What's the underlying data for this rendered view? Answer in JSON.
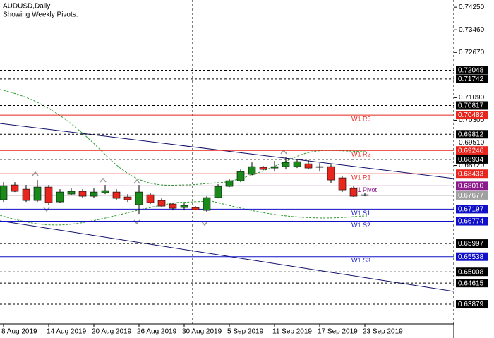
{
  "chart_data": {
    "type": "candlestick",
    "title": "AUDUSD,Daily",
    "subtitle": "Showing Weekly Pivots.",
    "categories": [
      "8 Aug 2019",
      null,
      null,
      null,
      "14 Aug 2019",
      null,
      null,
      null,
      "20 Aug 2019",
      null,
      null,
      null,
      "26 Aug 2019",
      null,
      null,
      null,
      "30 Aug 2019",
      null,
      null,
      null,
      "5 Sep 2019",
      null,
      null,
      null,
      "11 Sep 2019",
      null,
      null,
      null,
      "17 Sep 2019",
      null,
      null,
      null,
      "23 Sep 2019"
    ],
    "open": [
      0.67525,
      0.68042,
      0.67894,
      0.675,
      0.67968,
      0.67451,
      0.67722,
      0.6782,
      0.67648,
      0.67771,
      0.67796,
      0.67624,
      0.67352,
      0.67697,
      0.675,
      0.67377,
      0.67254,
      0.67254,
      0.67155,
      0.67599,
      0.67993,
      0.6819,
      0.68412,
      0.68658,
      0.68633,
      0.68682,
      0.68682,
      0.68781,
      0.68682,
      0.68682,
      0.68289,
      0.67919,
      0.67697
    ],
    "high": [
      0.68141,
      0.68141,
      0.68042,
      0.68215,
      0.68042,
      0.67894,
      0.67919,
      0.67894,
      0.67919,
      0.68042,
      0.67894,
      0.67722,
      0.68042,
      0.67771,
      0.67574,
      0.67426,
      0.67426,
      0.67303,
      0.67648,
      0.68067,
      0.68263,
      0.68584,
      0.6883,
      0.68707,
      0.68879,
      0.69003,
      0.68929,
      0.68904,
      0.68805,
      0.68756,
      0.68338,
      0.67993,
      0.67771
    ],
    "low": [
      0.67451,
      0.67796,
      0.67451,
      0.67451,
      0.67352,
      0.67402,
      0.67697,
      0.67599,
      0.67599,
      0.67722,
      0.67525,
      0.67451,
      0.67032,
      0.67377,
      0.67278,
      0.67155,
      0.67155,
      0.67155,
      0.67106,
      0.67574,
      0.67968,
      0.68141,
      0.68387,
      0.6856,
      0.6851,
      0.68584,
      0.68633,
      0.68584,
      0.6851,
      0.68117,
      0.67796,
      0.67624,
      0.67648
    ],
    "close": [
      0.68018,
      0.6782,
      0.675,
      0.67968,
      0.67426,
      0.67796,
      0.6782,
      0.67648,
      0.67796,
      0.67845,
      0.67574,
      0.67525,
      0.67796,
      0.67426,
      0.67303,
      0.67229,
      0.67328,
      0.6718,
      0.67599,
      0.67993,
      0.6819,
      0.6851,
      0.68682,
      0.68584,
      0.68682,
      0.6883,
      0.68855,
      0.68633,
      0.68658,
      0.68215,
      0.6787,
      0.67648,
      0.67677
    ],
    "up_color": "#1a8a1a",
    "down_color": "#e8261e",
    "wick_color": "#000000",
    "ylim": [
      0.6319,
      0.745
    ],
    "yticks": [
      {
        "value": 0.7425,
        "label": "0.74250"
      },
      {
        "value": 0.7346,
        "label": "0.73460"
      },
      {
        "value": 0.7267,
        "label": "0.72670"
      },
      {
        "value": 0.7109,
        "label": "0.71090"
      },
      {
        "value": 0.703,
        "label": "0.70300"
      },
      {
        "value": 0.6951,
        "label": "0.69510"
      },
      {
        "value": 0.6872,
        "label": "0.68720"
      }
    ],
    "levels": [
      {
        "value": 0.72048,
        "label": "0.72048"
      },
      {
        "value": 0.71742,
        "label": "0.71742"
      },
      {
        "value": 0.70817,
        "label": "0.70817"
      },
      {
        "value": 0.69812,
        "label": "0.69812"
      },
      {
        "value": 0.68934,
        "label": "0.68934"
      },
      {
        "value": 0.65997,
        "label": "0.65997"
      },
      {
        "value": 0.65008,
        "label": "0.65008"
      },
      {
        "value": 0.64615,
        "label": "0.64615"
      },
      {
        "value": 0.63879,
        "label": "0.63879"
      }
    ],
    "level_color": "#000000",
    "pivots": [
      {
        "name": "W1 R3",
        "value": 0.70482,
        "label": "0.70482",
        "color": "#e8261e"
      },
      {
        "name": "W1 R2",
        "value": 0.69246,
        "label": "0.69246",
        "color": "#e8261e"
      },
      {
        "name": "W1 R1",
        "value": 0.68433,
        "label": "0.68433",
        "color": "#e8261e"
      },
      {
        "name": "W1 Pivot",
        "value": 0.6801,
        "label": "0.68010",
        "color": "#8b1a8b"
      },
      {
        "name": "W1 S1",
        "value": 0.67197,
        "label": "0.67197",
        "color": "#1010c8"
      },
      {
        "name": "W1 S2",
        "value": 0.66774,
        "label": "0.66774",
        "color": "#1010c8"
      },
      {
        "name": "W1 S3",
        "value": 0.65538,
        "label": "0.65538",
        "color": "#1010c8"
      }
    ],
    "current_price": {
      "value": 0.67677,
      "label": "0.67677",
      "color": "#a0a0a0"
    }
  }
}
